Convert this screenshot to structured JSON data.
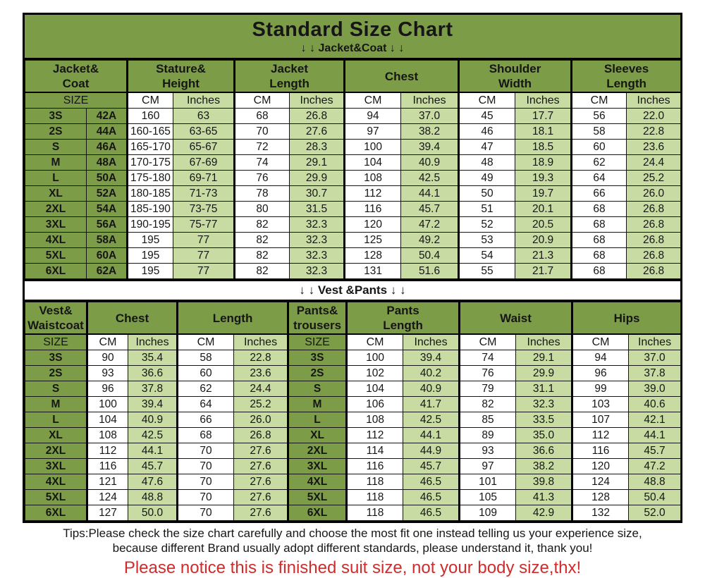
{
  "colors": {
    "header_green": "#7d9c48",
    "light_green": "#c7dba2",
    "border_dark": "#141414",
    "red_notice": "#d22b2b"
  },
  "banner": {
    "title": "Standard Size Chart",
    "subtitle": "↓ ↓  Jacket&Coat ↓ ↓"
  },
  "units": {
    "size": "SIZE",
    "cm": "CM",
    "inches": "Inches"
  },
  "jacket_table": {
    "headers": [
      "Jacket&\nCoat",
      "Stature&\nHeight",
      "Jacket\nLength",
      "Chest",
      "Shoulder\nWidth",
      "Sleeves\nLength"
    ],
    "rows": [
      [
        "3S",
        "42A",
        "160",
        "63",
        "68",
        "26.8",
        "94",
        "37.0",
        "45",
        "17.7",
        "56",
        "22.0"
      ],
      [
        "2S",
        "44A",
        "160-165",
        "63-65",
        "70",
        "27.6",
        "97",
        "38.2",
        "46",
        "18.1",
        "58",
        "22.8"
      ],
      [
        "S",
        "46A",
        "165-170",
        "65-67",
        "72",
        "28.3",
        "100",
        "39.4",
        "47",
        "18.5",
        "60",
        "23.6"
      ],
      [
        "M",
        "48A",
        "170-175",
        "67-69",
        "74",
        "29.1",
        "104",
        "40.9",
        "48",
        "18.9",
        "62",
        "24.4"
      ],
      [
        "L",
        "50A",
        "175-180",
        "69-71",
        "76",
        "29.9",
        "108",
        "42.5",
        "49",
        "19.3",
        "64",
        "25.2"
      ],
      [
        "XL",
        "52A",
        "180-185",
        "71-73",
        "78",
        "30.7",
        "112",
        "44.1",
        "50",
        "19.7",
        "66",
        "26.0"
      ],
      [
        "2XL",
        "54A",
        "185-190",
        "73-75",
        "80",
        "31.5",
        "116",
        "45.7",
        "51",
        "20.1",
        "68",
        "26.8"
      ],
      [
        "3XL",
        "56A",
        "190-195",
        "75-77",
        "82",
        "32.3",
        "120",
        "47.2",
        "52",
        "20.5",
        "68",
        "26.8"
      ],
      [
        "4XL",
        "58A",
        "195",
        "77",
        "82",
        "32.3",
        "125",
        "49.2",
        "53",
        "20.9",
        "68",
        "26.8"
      ],
      [
        "5XL",
        "60A",
        "195",
        "77",
        "82",
        "32.3",
        "128",
        "50.4",
        "54",
        "21.3",
        "68",
        "26.8"
      ],
      [
        "6XL",
        "62A",
        "195",
        "77",
        "82",
        "32.3",
        "131",
        "51.6",
        "55",
        "21.7",
        "68",
        "26.8"
      ]
    ]
  },
  "vest_pants_table": {
    "divider": "↓ ↓  Vest &Pants ↓ ↓",
    "headers": [
      "Vest&\nWaistcoat",
      "Chest",
      "Length",
      "Pants&\ntrousers",
      "Pants\nLength",
      "Waist",
      "Hips"
    ],
    "rows": [
      [
        "3S",
        "90",
        "35.4",
        "58",
        "22.8",
        "3S",
        "100",
        "39.4",
        "74",
        "29.1",
        "94",
        "37.0"
      ],
      [
        "2S",
        "93",
        "36.6",
        "60",
        "23.6",
        "2S",
        "102",
        "40.2",
        "76",
        "29.9",
        "96",
        "37.8"
      ],
      [
        "S",
        "96",
        "37.8",
        "62",
        "24.4",
        "S",
        "104",
        "40.9",
        "79",
        "31.1",
        "99",
        "39.0"
      ],
      [
        "M",
        "100",
        "39.4",
        "64",
        "25.2",
        "M",
        "106",
        "41.7",
        "82",
        "32.3",
        "103",
        "40.6"
      ],
      [
        "L",
        "104",
        "40.9",
        "66",
        "26.0",
        "L",
        "108",
        "42.5",
        "85",
        "33.5",
        "107",
        "42.1"
      ],
      [
        "XL",
        "108",
        "42.5",
        "68",
        "26.8",
        "XL",
        "112",
        "44.1",
        "89",
        "35.0",
        "112",
        "44.1"
      ],
      [
        "2XL",
        "112",
        "44.1",
        "70",
        "27.6",
        "2XL",
        "114",
        "44.9",
        "93",
        "36.6",
        "116",
        "45.7"
      ],
      [
        "3XL",
        "116",
        "45.7",
        "70",
        "27.6",
        "3XL",
        "116",
        "45.7",
        "97",
        "38.2",
        "120",
        "47.2"
      ],
      [
        "4XL",
        "121",
        "47.6",
        "70",
        "27.6",
        "4XL",
        "118",
        "46.5",
        "101",
        "39.8",
        "124",
        "48.8"
      ],
      [
        "5XL",
        "124",
        "48.8",
        "70",
        "27.6",
        "5XL",
        "118",
        "46.5",
        "105",
        "41.3",
        "128",
        "50.4"
      ],
      [
        "6XL",
        "127",
        "50.0",
        "70",
        "27.6",
        "6XL",
        "118",
        "46.5",
        "109",
        "42.9",
        "132",
        "52.0"
      ]
    ]
  },
  "footer": {
    "tips_line1": "Tips:Please check the size chart carefully and choose the most fit one instead telling us your experience size,",
    "tips_line2": "because different Brand usually adopt different standards, please understand it, thank you!",
    "notice": "Please notice this is finished suit size, not your body size,thx!"
  }
}
